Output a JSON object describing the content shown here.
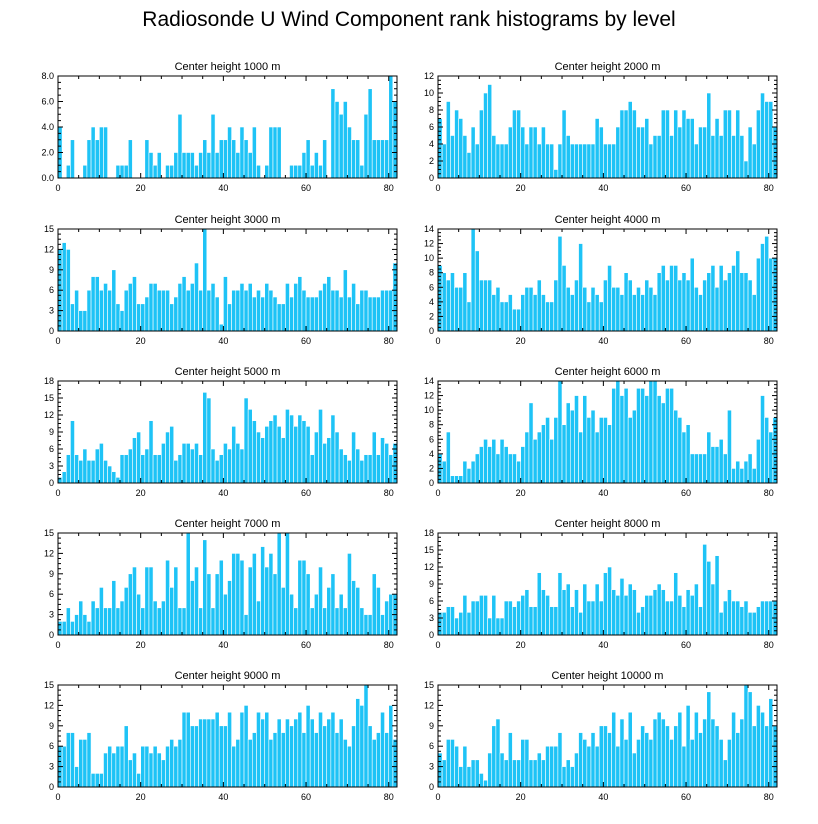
{
  "title": "Radiosonde U Wind Component rank histograms by level",
  "colors": {
    "bar": "#1ec3f6",
    "bar_edge": "#ffffff",
    "axis": "#000000"
  },
  "chart_data": [
    {
      "type": "bar",
      "title": "Center height 1000 m",
      "xlim": [
        0,
        82
      ],
      "xticks": [
        0,
        20,
        40,
        60,
        80
      ],
      "ylim": [
        0,
        8
      ],
      "yticks": [
        "0.0",
        "2.0",
        "4.0",
        "6.0",
        "8.0"
      ],
      "values": [
        4,
        0,
        1,
        3,
        0,
        0,
        1,
        3,
        4,
        3,
        4,
        4,
        0,
        0,
        1,
        1,
        1,
        3,
        0,
        0,
        0,
        3,
        2,
        1,
        2,
        0,
        1,
        1,
        2,
        5,
        2,
        2,
        2,
        1,
        2,
        3,
        2,
        5,
        2,
        3,
        3,
        4,
        3,
        2,
        4,
        3,
        2,
        4,
        1,
        0,
        1,
        4,
        4,
        4,
        0,
        0,
        1,
        1,
        1,
        2,
        3,
        1,
        2,
        1,
        3,
        0,
        7,
        6,
        5,
        6,
        4,
        3,
        3,
        1,
        5,
        7,
        3,
        3,
        3,
        3,
        8,
        6
      ]
    },
    {
      "type": "bar",
      "title": "Center height 2000 m",
      "xlim": [
        0,
        82
      ],
      "xticks": [
        0,
        20,
        40,
        60,
        80
      ],
      "ylim": [
        0,
        12
      ],
      "yticks": [
        "0",
        "2",
        "4",
        "6",
        "8",
        "10",
        "12"
      ],
      "values": [
        7,
        4,
        9,
        5,
        8,
        7,
        5,
        3,
        6,
        4,
        8,
        10,
        11,
        5,
        4,
        4,
        4,
        6,
        8,
        8,
        6,
        4,
        6,
        6,
        4,
        6,
        4,
        4,
        1,
        4,
        8,
        5,
        4,
        4,
        4,
        4,
        4,
        4,
        7,
        6,
        4,
        4,
        4,
        6,
        8,
        8,
        9,
        8,
        6,
        6,
        7,
        4,
        5,
        5,
        8,
        8,
        5,
        8,
        6,
        8,
        7,
        7,
        4,
        6,
        6,
        10,
        5,
        7,
        5,
        8,
        8,
        5,
        8,
        5,
        2,
        6,
        4,
        8,
        10,
        9,
        9,
        6
      ]
    },
    {
      "type": "bar",
      "title": "Center height 3000 m",
      "xlim": [
        0,
        82
      ],
      "xticks": [
        0,
        20,
        40,
        60,
        80
      ],
      "ylim": [
        0,
        15
      ],
      "yticks": [
        "0",
        "3",
        "6",
        "9",
        "12",
        "15"
      ],
      "values": [
        12,
        13,
        12,
        4,
        6,
        3,
        3,
        6,
        8,
        8,
        6,
        7,
        6,
        9,
        4,
        3,
        6,
        7,
        8,
        4,
        4,
        5,
        7,
        7,
        6,
        6,
        6,
        4,
        5,
        7,
        8,
        6,
        7,
        10,
        6,
        15,
        6,
        7,
        5,
        1,
        8,
        4,
        6,
        6,
        7,
        6,
        7,
        5,
        6,
        5,
        7,
        6,
        5,
        4,
        4,
        7,
        5,
        7,
        8,
        6,
        5,
        5,
        5,
        6,
        7,
        8,
        6,
        6,
        5,
        9,
        5,
        7,
        4,
        6,
        6,
        5,
        5,
        5,
        6,
        6,
        6,
        10
      ]
    },
    {
      "type": "bar",
      "title": "Center height 4000 m",
      "xlim": [
        0,
        82
      ],
      "xticks": [
        0,
        20,
        40,
        60,
        80
      ],
      "ylim": [
        0,
        14
      ],
      "yticks": [
        "0",
        "2",
        "4",
        "6",
        "8",
        "10",
        "12",
        "14"
      ],
      "values": [
        9,
        8,
        7,
        8,
        6,
        6,
        8,
        4,
        14,
        11,
        7,
        7,
        7,
        5,
        6,
        4,
        4,
        5,
        3,
        3,
        5,
        6,
        6,
        5,
        7,
        5,
        4,
        4,
        7,
        13,
        9,
        6,
        5,
        7,
        12,
        6,
        4,
        6,
        5,
        4,
        7,
        9,
        6,
        6,
        5,
        8,
        7,
        5,
        6,
        5,
        7,
        6,
        5,
        8,
        9,
        7,
        9,
        9,
        7,
        8,
        7,
        10,
        6,
        5,
        7,
        8,
        9,
        6,
        9,
        7,
        8,
        9,
        11,
        8,
        8,
        7,
        5,
        10,
        12,
        13,
        10,
        10
      ]
    },
    {
      "type": "bar",
      "title": "Center height 5000 m",
      "xlim": [
        0,
        82
      ],
      "xticks": [
        0,
        20,
        40,
        60,
        80
      ],
      "ylim": [
        0,
        18
      ],
      "yticks": [
        "0",
        "3",
        "6",
        "9",
        "12",
        "15",
        "18"
      ],
      "values": [
        1,
        2,
        5,
        11,
        5,
        4,
        6,
        4,
        4,
        6,
        7,
        4,
        3,
        2,
        1,
        5,
        5,
        6,
        8,
        9,
        5,
        6,
        11,
        5,
        5,
        7,
        9,
        10,
        4,
        5,
        7,
        7,
        6,
        7,
        5,
        16,
        15,
        6,
        4,
        5,
        7,
        6,
        10,
        7,
        6,
        15,
        13,
        11,
        9,
        8,
        10,
        11,
        12,
        10,
        8,
        13,
        12,
        10,
        12,
        11,
        10,
        5,
        9,
        13,
        7,
        8,
        12,
        9,
        6,
        5,
        4,
        9,
        6,
        4,
        5,
        5,
        9,
        5,
        8,
        7,
        5,
        7
      ]
    },
    {
      "type": "bar",
      "title": "Center height 6000 m",
      "xlim": [
        0,
        82
      ],
      "xticks": [
        0,
        20,
        40,
        60,
        80
      ],
      "ylim": [
        0,
        14
      ],
      "yticks": [
        "0",
        "2",
        "4",
        "6",
        "8",
        "10",
        "12",
        "14"
      ],
      "values": [
        4,
        3,
        7,
        1,
        1,
        1,
        3,
        2,
        3,
        4,
        5,
        6,
        5,
        6,
        4,
        6,
        5,
        4,
        4,
        3,
        5,
        7,
        11,
        6,
        7,
        8,
        9,
        6,
        9,
        14,
        8,
        11,
        10,
        12,
        7,
        12,
        9,
        10,
        7,
        9,
        9,
        8,
        13,
        14,
        12,
        13,
        9,
        10,
        13,
        13,
        12,
        14,
        14,
        12,
        11,
        13,
        13,
        10,
        9,
        7,
        8,
        4,
        4,
        4,
        4,
        7,
        5,
        5,
        6,
        4,
        10,
        2,
        3,
        2,
        3,
        4,
        2,
        6,
        12,
        9,
        7,
        9
      ]
    },
    {
      "type": "bar",
      "title": "Center height 7000 m",
      "xlim": [
        0,
        82
      ],
      "xticks": [
        0,
        20,
        40,
        60,
        80
      ],
      "ylim": [
        0,
        15
      ],
      "yticks": [
        "0",
        "3",
        "6",
        "9",
        "12",
        "15"
      ],
      "values": [
        2,
        2,
        4,
        2,
        3,
        5,
        3,
        2,
        5,
        4,
        7,
        4,
        4,
        8,
        4,
        5,
        7,
        9,
        10,
        6,
        4,
        10,
        10,
        5,
        4,
        5,
        11,
        7,
        10,
        4,
        4,
        15,
        8,
        10,
        4,
        14,
        9,
        4,
        9,
        11,
        6,
        8,
        12,
        12,
        11,
        3,
        10,
        12,
        5,
        13,
        10,
        12,
        9,
        15,
        7,
        15,
        6,
        4,
        11,
        11,
        9,
        4,
        6,
        10,
        4,
        7,
        9,
        4,
        6,
        4,
        12,
        8,
        7,
        4,
        3,
        3,
        9,
        7,
        3,
        5,
        6,
        6
      ]
    },
    {
      "type": "bar",
      "title": "Center height 8000 m",
      "xlim": [
        0,
        82
      ],
      "xticks": [
        0,
        20,
        40,
        60,
        80
      ],
      "ylim": [
        0,
        18
      ],
      "yticks": [
        "0",
        "3",
        "6",
        "9",
        "12",
        "15",
        "18"
      ],
      "values": [
        4,
        4,
        5,
        5,
        3,
        4,
        7,
        4,
        6,
        6,
        7,
        7,
        3,
        7,
        3,
        3,
        6,
        6,
        5,
        6,
        7,
        8,
        5,
        5,
        11,
        8,
        7,
        5,
        5,
        11,
        8,
        9,
        5,
        8,
        4,
        9,
        6,
        6,
        9,
        6,
        11,
        12,
        8,
        7,
        10,
        7,
        9,
        8,
        4,
        5,
        7,
        7,
        8,
        9,
        8,
        6,
        6,
        11,
        7,
        5,
        8,
        7,
        9,
        5,
        16,
        13,
        9,
        14,
        4,
        6,
        8,
        6,
        6,
        5,
        6,
        4,
        4,
        5,
        6,
        6,
        6,
        6
      ]
    },
    {
      "type": "bar",
      "title": "Center height 9000 m",
      "xlim": [
        0,
        82
      ],
      "xticks": [
        0,
        20,
        40,
        60,
        80
      ],
      "ylim": [
        0,
        15
      ],
      "yticks": [
        "0",
        "3",
        "6",
        "9",
        "12",
        "15"
      ],
      "values": [
        6,
        6,
        8,
        8,
        3,
        7,
        7,
        8,
        2,
        2,
        2,
        5,
        6,
        5,
        6,
        6,
        9,
        4,
        5,
        2,
        6,
        6,
        5,
        6,
        5,
        4,
        6,
        7,
        6,
        7,
        11,
        11,
        9,
        9,
        10,
        10,
        10,
        10,
        11,
        9,
        9,
        11,
        6,
        7,
        11,
        12,
        7,
        8,
        11,
        10,
        11,
        7,
        8,
        10,
        8,
        10,
        9,
        10,
        11,
        8,
        12,
        10,
        8,
        11,
        9,
        10,
        11,
        8,
        10,
        7,
        6,
        9,
        13,
        12,
        15,
        9,
        7,
        8,
        11,
        8,
        12,
        7
      ]
    },
    {
      "type": "bar",
      "title": "Center height 10000 m",
      "xlim": [
        0,
        82
      ],
      "xticks": [
        0,
        20,
        40,
        60,
        80
      ],
      "ylim": [
        0,
        15
      ],
      "yticks": [
        "0",
        "3",
        "6",
        "9",
        "12",
        "15"
      ],
      "values": [
        5,
        4,
        7,
        7,
        6,
        3,
        6,
        3,
        4,
        4,
        2,
        1,
        5,
        9,
        10,
        5,
        4,
        8,
        4,
        4,
        7,
        7,
        4,
        4,
        5,
        4,
        6,
        6,
        6,
        8,
        3,
        4,
        3,
        5,
        8,
        7,
        6,
        8,
        6,
        9,
        9,
        8,
        11,
        6,
        10,
        7,
        11,
        5,
        7,
        9,
        8,
        7,
        10,
        11,
        10,
        9,
        7,
        9,
        11,
        6,
        12,
        7,
        11,
        8,
        10,
        14,
        10,
        9,
        7,
        4,
        7,
        11,
        8,
        10,
        15,
        14,
        9,
        12,
        11,
        9,
        13,
        9
      ]
    }
  ]
}
